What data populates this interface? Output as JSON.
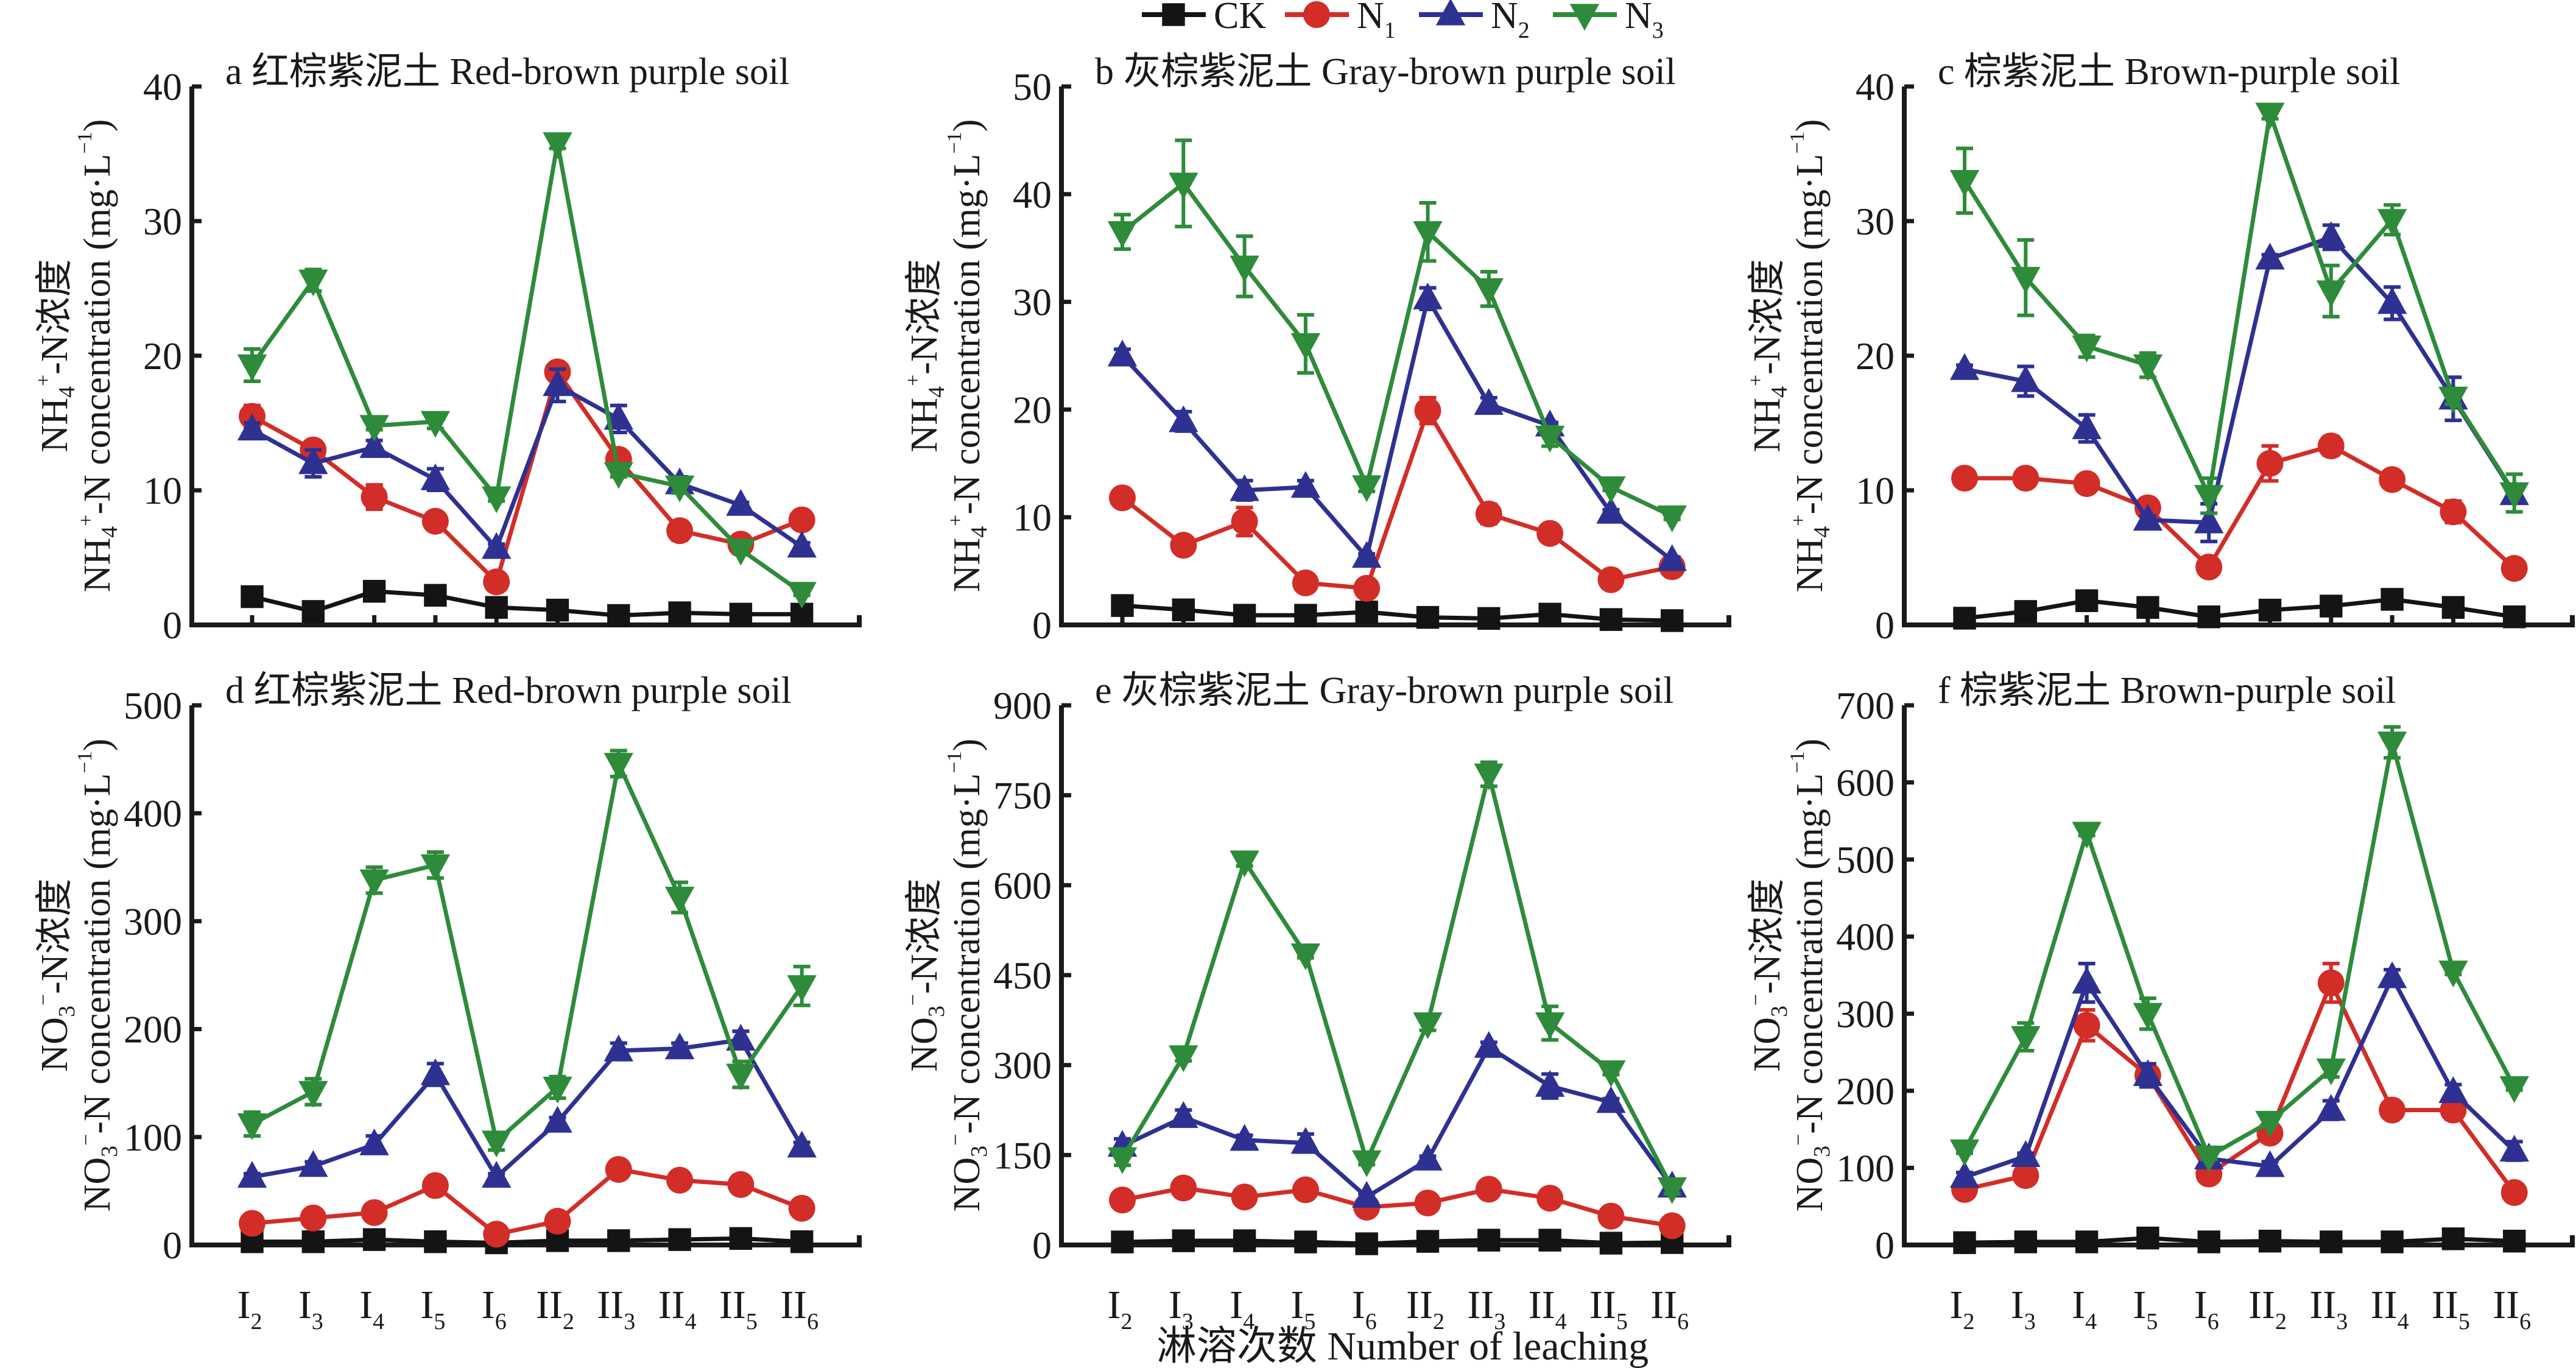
{
  "legend": [
    {
      "key": "CK",
      "label": "CK",
      "sub": "",
      "color": "#141414",
      "marker": "square"
    },
    {
      "key": "N1",
      "label": "N",
      "sub": "1",
      "color": "#d22d27",
      "marker": "circle"
    },
    {
      "key": "N2",
      "label": "N",
      "sub": "2",
      "color": "#2e3192",
      "marker": "triangle-up"
    },
    {
      "key": "N3",
      "label": "N",
      "sub": "3",
      "color": "#2e8b3a",
      "marker": "triangle-down"
    }
  ],
  "x_title": "淋溶次数 Number of leaching",
  "chart_data": [
    {
      "id": "a",
      "type": "line",
      "title": "a 红棕紫泥土 Red-brown purple soil",
      "ylabel_cn": "NH4+-N浓度",
      "ylabel_en": "NH4+-N concentration (mg·L-1)",
      "ion": "NH4",
      "categories": [
        "I2",
        "I3",
        "I4",
        "I5",
        "I6",
        "II2",
        "II3",
        "II4",
        "II5",
        "II6"
      ],
      "ylim": [
        0,
        40
      ],
      "yticks": [
        0,
        10,
        20,
        30,
        40
      ],
      "show_xtick_labels": false,
      "series": [
        {
          "name": "CK",
          "values": [
            2.1,
            1.0,
            2.5,
            2.2,
            1.3,
            1.1,
            0.7,
            0.9,
            0.8,
            0.8
          ],
          "err": [
            0.2,
            0.2,
            0.2,
            0.2,
            0.2,
            0.2,
            0.2,
            0.2,
            0.2,
            0.2
          ]
        },
        {
          "name": "N1",
          "values": [
            15.5,
            13.0,
            9.5,
            7.7,
            3.2,
            18.8,
            12.3,
            7.0,
            6.0,
            7.8
          ],
          "err": [
            0.8,
            0.3,
            0.9,
            0.3,
            0.3,
            0.5,
            0.6,
            0.7,
            0.4,
            0.3
          ]
        },
        {
          "name": "N2",
          "values": [
            14.5,
            12.0,
            13.2,
            10.8,
            5.7,
            17.8,
            15.3,
            10.5,
            8.9,
            5.8
          ],
          "err": [
            0.5,
            1.0,
            0.5,
            0.8,
            0.3,
            1.2,
            1.0,
            0.5,
            0.2,
            0.3
          ]
        },
        {
          "name": "N3",
          "values": [
            19.3,
            25.6,
            14.8,
            15.1,
            9.5,
            35.8,
            11.3,
            10.3,
            5.6,
            2.4
          ],
          "err": [
            1.2,
            0.8,
            0.3,
            0.5,
            0.3,
            0.4,
            0.3,
            0.5,
            0.3,
            0.2
          ]
        }
      ]
    },
    {
      "id": "b",
      "type": "line",
      "title": "b 灰棕紫泥土 Gray-brown purple soil",
      "ylabel_cn": "NH4+-N浓度",
      "ylabel_en": "NH4+-N concentration (mg·L-1)",
      "ion": "NH4",
      "categories": [
        "I2",
        "I3",
        "I4",
        "I5",
        "I6",
        "II2",
        "II3",
        "II4",
        "II5",
        "II6"
      ],
      "ylim": [
        0,
        50
      ],
      "yticks": [
        0,
        10,
        20,
        30,
        40,
        50
      ],
      "show_xtick_labels": false,
      "series": [
        {
          "name": "CK",
          "values": [
            1.8,
            1.4,
            0.9,
            0.9,
            1.2,
            0.7,
            0.6,
            1.0,
            0.5,
            0.4
          ],
          "err": [
            0.3,
            0.2,
            0.2,
            0.2,
            0.2,
            0.2,
            0.2,
            0.2,
            0.2,
            0.2
          ]
        },
        {
          "name": "N1",
          "values": [
            11.8,
            7.4,
            9.6,
            3.9,
            3.4,
            19.9,
            10.3,
            8.5,
            4.2,
            5.4
          ],
          "err": [
            0.7,
            0.4,
            1.3,
            0.4,
            0.3,
            1.2,
            0.9,
            0.7,
            0.3,
            0.3
          ]
        },
        {
          "name": "N2",
          "values": [
            25.0,
            18.9,
            12.5,
            12.8,
            6.3,
            30.3,
            20.5,
            18.5,
            10.4,
            6.0
          ],
          "err": [
            0.6,
            0.9,
            0.9,
            0.6,
            0.3,
            1.0,
            0.6,
            0.3,
            0.3,
            0.3
          ]
        },
        {
          "name": "N3",
          "values": [
            36.5,
            41.0,
            33.3,
            26.1,
            12.9,
            36.5,
            31.2,
            17.5,
            12.8,
            10.1
          ],
          "err": [
            1.6,
            4.0,
            2.8,
            2.7,
            0.5,
            2.7,
            1.6,
            0.9,
            0.3,
            0.3
          ]
        }
      ]
    },
    {
      "id": "c",
      "type": "line",
      "title": "c 棕紫泥土 Brown-purple soil",
      "ylabel_cn": "NH4+-N浓度",
      "ylabel_en": "NH4+-N concentration (mg·L-1)",
      "ion": "NH4",
      "categories": [
        "I2",
        "I3",
        "I4",
        "I5",
        "I6",
        "II2",
        "II3",
        "II4",
        "II5",
        "II6"
      ],
      "ylim": [
        0,
        40
      ],
      "yticks": [
        0,
        10,
        20,
        30,
        40
      ],
      "show_xtick_labels": false,
      "series": [
        {
          "name": "CK",
          "values": [
            0.5,
            1.0,
            1.8,
            1.3,
            0.6,
            1.1,
            1.4,
            1.9,
            1.3,
            0.6
          ],
          "err": [
            0.2,
            0.2,
            0.2,
            0.2,
            0.2,
            0.2,
            0.2,
            0.2,
            0.2,
            0.2
          ]
        },
        {
          "name": "N1",
          "values": [
            10.9,
            10.9,
            10.5,
            8.7,
            4.3,
            12.0,
            13.3,
            10.8,
            8.4,
            4.2
          ],
          "err": [
            0.2,
            0.4,
            0.2,
            0.2,
            0.2,
            1.3,
            0.7,
            0.5,
            0.8,
            0.2
          ]
        },
        {
          "name": "N2",
          "values": [
            19.0,
            18.1,
            14.6,
            7.8,
            7.6,
            27.2,
            28.8,
            23.9,
            16.8,
            9.7
          ],
          "err": [
            0.3,
            1.1,
            1.0,
            0.3,
            1.4,
            0.3,
            0.9,
            1.2,
            1.6,
            0.3
          ]
        },
        {
          "name": "N3",
          "values": [
            33.0,
            25.8,
            20.7,
            19.3,
            9.6,
            38.0,
            24.8,
            30.1,
            16.9,
            9.8
          ],
          "err": [
            2.4,
            2.8,
            0.8,
            0.9,
            1.3,
            0.4,
            1.9,
            1.1,
            0.5,
            1.4
          ]
        }
      ]
    },
    {
      "id": "d",
      "type": "line",
      "title": "d 红棕紫泥土 Red-brown purple soil",
      "ylabel_cn": "NO3--N浓度",
      "ylabel_en": "NO3--N concentration (mg·L-1)",
      "ion": "NO3",
      "categories": [
        "I2",
        "I3",
        "I4",
        "I5",
        "I6",
        "II2",
        "II3",
        "II4",
        "II5",
        "II6"
      ],
      "ylim": [
        0,
        500
      ],
      "yticks": [
        0,
        100,
        200,
        300,
        400,
        500
      ],
      "show_xtick_labels": true,
      "series": [
        {
          "name": "CK",
          "values": [
            3,
            3,
            5,
            3,
            2,
            4,
            4,
            5,
            6,
            3
          ],
          "err": [
            1,
            1,
            1,
            1,
            1,
            1,
            1,
            1,
            1,
            1
          ]
        },
        {
          "name": "N1",
          "values": [
            20,
            25,
            30,
            55,
            10,
            22,
            70,
            60,
            56,
            34
          ],
          "err": [
            2,
            2,
            2,
            3,
            2,
            2,
            3,
            3,
            5,
            3
          ]
        },
        {
          "name": "N2",
          "values": [
            63,
            73,
            93,
            158,
            63,
            114,
            180,
            182,
            190,
            91
          ],
          "err": [
            3,
            4,
            8,
            10,
            3,
            4,
            7,
            5,
            8,
            4
          ]
        },
        {
          "name": "N3",
          "values": [
            112,
            142,
            338,
            352,
            96,
            146,
            446,
            322,
            158,
            240
          ],
          "err": [
            11,
            12,
            12,
            12,
            8,
            10,
            12,
            14,
            12,
            18
          ]
        }
      ]
    },
    {
      "id": "e",
      "type": "line",
      "title": "e 灰棕紫泥土 Gray-brown purple soil",
      "ylabel_cn": "NO3--N浓度",
      "ylabel_en": "NO3--N concentration (mg·L-1)",
      "ion": "NO3",
      "categories": [
        "I2",
        "I3",
        "I4",
        "I5",
        "I6",
        "II2",
        "II3",
        "II4",
        "II5",
        "II6"
      ],
      "ylim": [
        0,
        900
      ],
      "yticks": [
        0,
        150,
        300,
        450,
        600,
        750,
        900
      ],
      "show_xtick_labels": true,
      "series": [
        {
          "name": "CK",
          "values": [
            5,
            7,
            7,
            5,
            2,
            6,
            8,
            8,
            3,
            4
          ],
          "err": [
            2,
            2,
            2,
            2,
            2,
            2,
            2,
            2,
            2,
            2
          ]
        },
        {
          "name": "N1",
          "values": [
            75,
            95,
            80,
            92,
            63,
            70,
            93,
            78,
            48,
            32
          ],
          "err": [
            3,
            3,
            3,
            3,
            3,
            3,
            3,
            3,
            3,
            3
          ]
        },
        {
          "name": "N2",
          "values": [
            165,
            213,
            175,
            170,
            80,
            142,
            330,
            265,
            238,
            97
          ],
          "err": [
            12,
            12,
            8,
            15,
            6,
            6,
            8,
            20,
            6,
            12
          ]
        },
        {
          "name": "N3",
          "values": [
            145,
            315,
            640,
            485,
            140,
            370,
            785,
            370,
            290,
            95
          ],
          "err": [
            12,
            8,
            8,
            6,
            6,
            12,
            20,
            28,
            6,
            10
          ]
        }
      ]
    },
    {
      "id": "f",
      "type": "line",
      "title": "f 棕紫泥土 Brown-purple soil",
      "ylabel_cn": "NO3--N浓度",
      "ylabel_en": "NO3--N concentration (mg·L-1)",
      "ion": "NO3",
      "categories": [
        "I2",
        "I3",
        "I4",
        "I5",
        "I6",
        "II2",
        "II3",
        "II4",
        "II5",
        "II6"
      ],
      "ylim": [
        0,
        700
      ],
      "yticks": [
        0,
        100,
        200,
        300,
        400,
        500,
        600,
        700
      ],
      "show_xtick_labels": true,
      "series": [
        {
          "name": "CK",
          "values": [
            3,
            4,
            4,
            9,
            4,
            5,
            4,
            4,
            8,
            5
          ],
          "err": [
            1,
            1,
            1,
            1,
            1,
            1,
            1,
            1,
            1,
            1
          ]
        },
        {
          "name": "N1",
          "values": [
            72,
            90,
            285,
            220,
            92,
            145,
            340,
            175,
            175,
            68
          ],
          "err": [
            4,
            4,
            20,
            6,
            4,
            10,
            25,
            6,
            12,
            5
          ]
        },
        {
          "name": "N2",
          "values": [
            88,
            115,
            340,
            220,
            112,
            102,
            175,
            347,
            198,
            122
          ],
          "err": [
            6,
            4,
            25,
            15,
            6,
            6,
            12,
            10,
            10,
            12
          ]
        },
        {
          "name": "N3",
          "values": [
            123,
            270,
            535,
            300,
            115,
            160,
            228,
            652,
            355,
            205
          ],
          "err": [
            4,
            18,
            4,
            20,
            4,
            4,
            10,
            20,
            4,
            4
          ]
        }
      ]
    }
  ]
}
